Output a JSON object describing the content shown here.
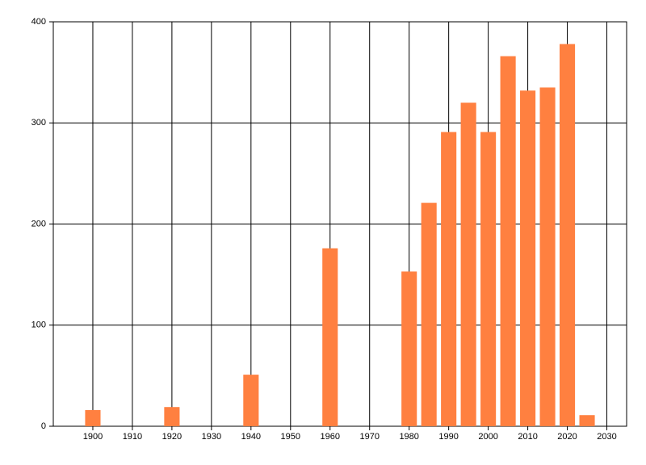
{
  "chart_data": {
    "type": "bar",
    "x": [
      1900,
      1920,
      1940,
      1960,
      1980,
      1985,
      1990,
      1995,
      2000,
      2005,
      2010,
      2015,
      2020,
      2025
    ],
    "values": [
      16,
      19,
      51,
      176,
      153,
      221,
      291,
      320,
      291,
      366,
      332,
      335,
      378,
      11
    ],
    "color": "#ff8040",
    "xlim": [
      1890,
      2035
    ],
    "xticks": [
      1900,
      1910,
      1920,
      1930,
      1940,
      1950,
      1960,
      1970,
      1980,
      1990,
      2000,
      2010,
      2020,
      2030
    ],
    "ylim": [
      0,
      400
    ],
    "yticks": [
      0,
      100,
      200,
      300,
      400
    ],
    "grid": true
  }
}
